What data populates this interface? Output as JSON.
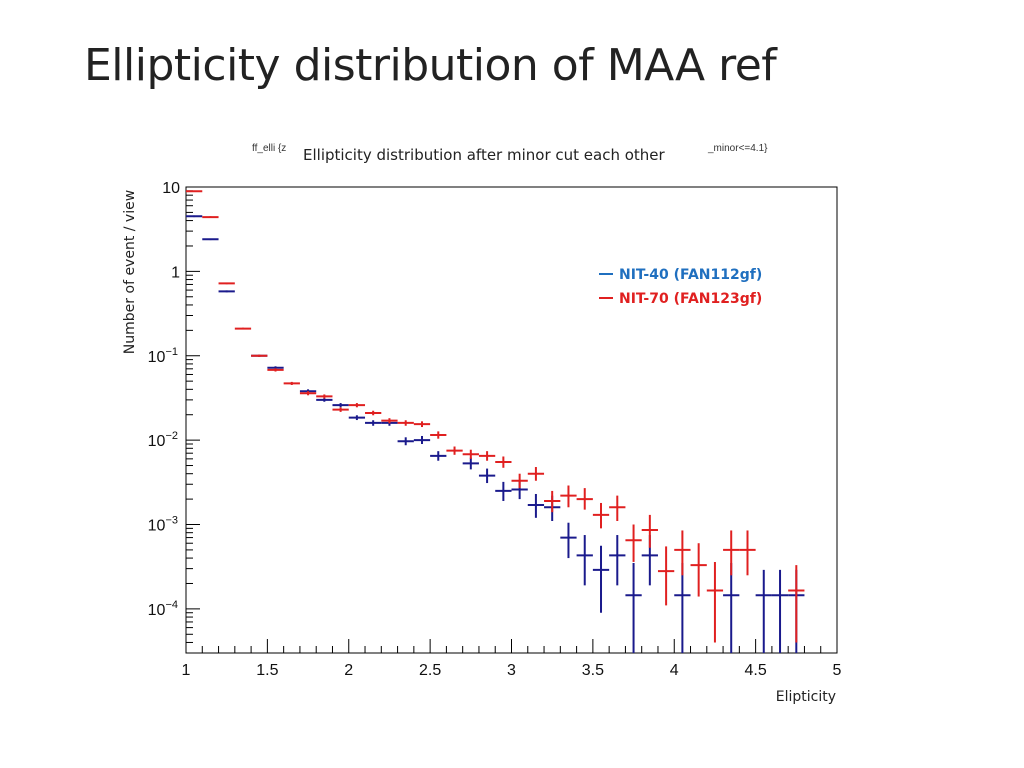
{
  "slide": {
    "title": "Ellipticity distribution of MAA ref"
  },
  "chart_data": {
    "type": "scatter",
    "title": "Ellipticity distribution after minor cut each other",
    "hist_id_fragment": "ff_elli {z",
    "cut_fragment": "_minor<=4.1}",
    "xlabel": "Elipticity",
    "ylabel": "Number of event / view",
    "xlim": [
      1,
      5
    ],
    "ylim": [
      3e-05,
      10
    ],
    "yscale": "log",
    "bin_width": 0.1,
    "x_ticks": [
      "1",
      "1.5",
      "2",
      "2.5",
      "3",
      "3.5",
      "4",
      "4.5",
      "5"
    ],
    "x_tick_values": [
      1,
      1.5,
      2,
      2.5,
      3,
      3.5,
      4,
      4.5,
      5
    ],
    "y_ticks": [
      {
        "value": 10,
        "base": "10",
        "exp": ""
      },
      {
        "value": 1,
        "base": "1",
        "exp": ""
      },
      {
        "value": 0.1,
        "base": "10",
        "exp": "−1"
      },
      {
        "value": 0.01,
        "base": "10",
        "exp": "−2"
      },
      {
        "value": 0.001,
        "base": "10",
        "exp": "−3"
      },
      {
        "value": 0.0001,
        "base": "10",
        "exp": "−4"
      }
    ],
    "legend": {
      "position": "top-right"
    },
    "series": [
      {
        "name": "NIT-40 (FAN112gf)",
        "color": "#1a1a8c",
        "legend_color": "#1f6fbf",
        "points": [
          {
            "x": 1.05,
            "y": 4.5,
            "lo": 4.4,
            "hi": 4.6
          },
          {
            "x": 1.15,
            "y": 2.4,
            "lo": 2.35,
            "hi": 2.45
          },
          {
            "x": 1.25,
            "y": 0.58,
            "lo": 0.565,
            "hi": 0.595
          },
          {
            "x": 1.45,
            "y": 0.1,
            "lo": 0.097,
            "hi": 0.103
          },
          {
            "x": 1.55,
            "y": 0.072,
            "lo": 0.069,
            "hi": 0.075
          },
          {
            "x": 1.75,
            "y": 0.038,
            "lo": 0.036,
            "hi": 0.04
          },
          {
            "x": 1.85,
            "y": 0.03,
            "lo": 0.0285,
            "hi": 0.0315
          },
          {
            "x": 1.95,
            "y": 0.026,
            "lo": 0.0245,
            "hi": 0.0275
          },
          {
            "x": 2.05,
            "y": 0.0185,
            "lo": 0.0173,
            "hi": 0.0197
          },
          {
            "x": 2.15,
            "y": 0.016,
            "lo": 0.0148,
            "hi": 0.0172
          },
          {
            "x": 2.25,
            "y": 0.016,
            "lo": 0.0148,
            "hi": 0.0172
          },
          {
            "x": 2.35,
            "y": 0.0097,
            "lo": 0.0087,
            "hi": 0.0108
          },
          {
            "x": 2.45,
            "y": 0.01,
            "lo": 0.009,
            "hi": 0.0112
          },
          {
            "x": 2.55,
            "y": 0.0065,
            "lo": 0.0057,
            "hi": 0.0074
          },
          {
            "x": 2.75,
            "y": 0.0053,
            "lo": 0.0045,
            "hi": 0.0062
          },
          {
            "x": 2.85,
            "y": 0.0038,
            "lo": 0.0031,
            "hi": 0.0046
          },
          {
            "x": 2.95,
            "y": 0.0025,
            "lo": 0.0019,
            "hi": 0.0032
          },
          {
            "x": 3.05,
            "y": 0.0026,
            "lo": 0.002,
            "hi": 0.0033
          },
          {
            "x": 3.15,
            "y": 0.0017,
            "lo": 0.0012,
            "hi": 0.0023
          },
          {
            "x": 3.25,
            "y": 0.0016,
            "lo": 0.0011,
            "hi": 0.0022
          },
          {
            "x": 3.35,
            "y": 0.0007,
            "lo": 0.0004,
            "hi": 0.00105
          },
          {
            "x": 3.45,
            "y": 0.00043,
            "lo": 0.00019,
            "hi": 0.00075
          },
          {
            "x": 3.55,
            "y": 0.00029,
            "lo": 9e-05,
            "hi": 0.00056
          },
          {
            "x": 3.65,
            "y": 0.00043,
            "lo": 0.00019,
            "hi": 0.00075
          },
          {
            "x": 3.75,
            "y": 0.000145,
            "lo": 3e-05,
            "hi": 0.00035
          },
          {
            "x": 3.85,
            "y": 0.00043,
            "lo": 0.00019,
            "hi": 0.00075
          },
          {
            "x": 4.05,
            "y": 0.000145,
            "lo": 3e-05,
            "hi": 0.00035
          },
          {
            "x": 4.35,
            "y": 0.000145,
            "lo": 3e-05,
            "hi": 0.00035
          },
          {
            "x": 4.55,
            "y": 0.000145,
            "lo": 3e-05,
            "hi": 0.00029
          },
          {
            "x": 4.65,
            "y": 0.000145,
            "lo": 3e-05,
            "hi": 0.00029
          },
          {
            "x": 4.75,
            "y": 0.000145,
            "lo": 3e-05,
            "hi": 0.00029
          }
        ]
      },
      {
        "name": "NIT-70 (FAN123gf)",
        "color": "#e02020",
        "legend_color": "#e02020",
        "points": [
          {
            "x": 1.05,
            "y": 8.9,
            "lo": 8.75,
            "hi": 9.05
          },
          {
            "x": 1.15,
            "y": 4.4,
            "lo": 4.3,
            "hi": 4.5
          },
          {
            "x": 1.25,
            "y": 0.72,
            "lo": 0.705,
            "hi": 0.735
          },
          {
            "x": 1.35,
            "y": 0.21,
            "lo": 0.205,
            "hi": 0.215
          },
          {
            "x": 1.45,
            "y": 0.1,
            "lo": 0.097,
            "hi": 0.103
          },
          {
            "x": 1.55,
            "y": 0.068,
            "lo": 0.065,
            "hi": 0.071
          },
          {
            "x": 1.65,
            "y": 0.047,
            "lo": 0.045,
            "hi": 0.049
          },
          {
            "x": 1.75,
            "y": 0.036,
            "lo": 0.034,
            "hi": 0.038
          },
          {
            "x": 1.85,
            "y": 0.033,
            "lo": 0.0312,
            "hi": 0.0348
          },
          {
            "x": 1.95,
            "y": 0.023,
            "lo": 0.0216,
            "hi": 0.0244
          },
          {
            "x": 2.05,
            "y": 0.026,
            "lo": 0.0245,
            "hi": 0.0275
          },
          {
            "x": 2.15,
            "y": 0.021,
            "lo": 0.0197,
            "hi": 0.0223
          },
          {
            "x": 2.25,
            "y": 0.017,
            "lo": 0.0158,
            "hi": 0.0182
          },
          {
            "x": 2.35,
            "y": 0.016,
            "lo": 0.0148,
            "hi": 0.0172
          },
          {
            "x": 2.45,
            "y": 0.0155,
            "lo": 0.0143,
            "hi": 0.0167
          },
          {
            "x": 2.55,
            "y": 0.0115,
            "lo": 0.0104,
            "hi": 0.0127
          },
          {
            "x": 2.65,
            "y": 0.0075,
            "lo": 0.0067,
            "hi": 0.0084
          },
          {
            "x": 2.75,
            "y": 0.0068,
            "lo": 0.006,
            "hi": 0.0077
          },
          {
            "x": 2.85,
            "y": 0.0065,
            "lo": 0.0057,
            "hi": 0.0074
          },
          {
            "x": 2.95,
            "y": 0.0055,
            "lo": 0.0047,
            "hi": 0.0064
          },
          {
            "x": 3.05,
            "y": 0.0033,
            "lo": 0.0027,
            "hi": 0.004
          },
          {
            "x": 3.15,
            "y": 0.004,
            "lo": 0.0033,
            "hi": 0.0048
          },
          {
            "x": 3.25,
            "y": 0.0019,
            "lo": 0.0014,
            "hi": 0.0025
          },
          {
            "x": 3.35,
            "y": 0.0022,
            "lo": 0.0016,
            "hi": 0.0029
          },
          {
            "x": 3.45,
            "y": 0.002,
            "lo": 0.0015,
            "hi": 0.0027
          },
          {
            "x": 3.55,
            "y": 0.0013,
            "lo": 0.0009,
            "hi": 0.0018
          },
          {
            "x": 3.65,
            "y": 0.0016,
            "lo": 0.0011,
            "hi": 0.0022
          },
          {
            "x": 3.75,
            "y": 0.00065,
            "lo": 0.00036,
            "hi": 0.001
          },
          {
            "x": 3.85,
            "y": 0.00086,
            "lo": 0.00053,
            "hi": 0.0013
          },
          {
            "x": 3.95,
            "y": 0.00028,
            "lo": 0.00011,
            "hi": 0.00055
          },
          {
            "x": 4.05,
            "y": 0.0005,
            "lo": 0.00025,
            "hi": 0.00085
          },
          {
            "x": 4.15,
            "y": 0.00033,
            "lo": 0.00014,
            "hi": 0.0006
          },
          {
            "x": 4.25,
            "y": 0.000165,
            "lo": 4e-05,
            "hi": 0.00036
          },
          {
            "x": 4.35,
            "y": 0.0005,
            "lo": 0.00025,
            "hi": 0.00085
          },
          {
            "x": 4.45,
            "y": 0.0005,
            "lo": 0.00025,
            "hi": 0.00085
          },
          {
            "x": 4.75,
            "y": 0.000165,
            "lo": 4e-05,
            "hi": 0.00033
          }
        ]
      }
    ]
  }
}
